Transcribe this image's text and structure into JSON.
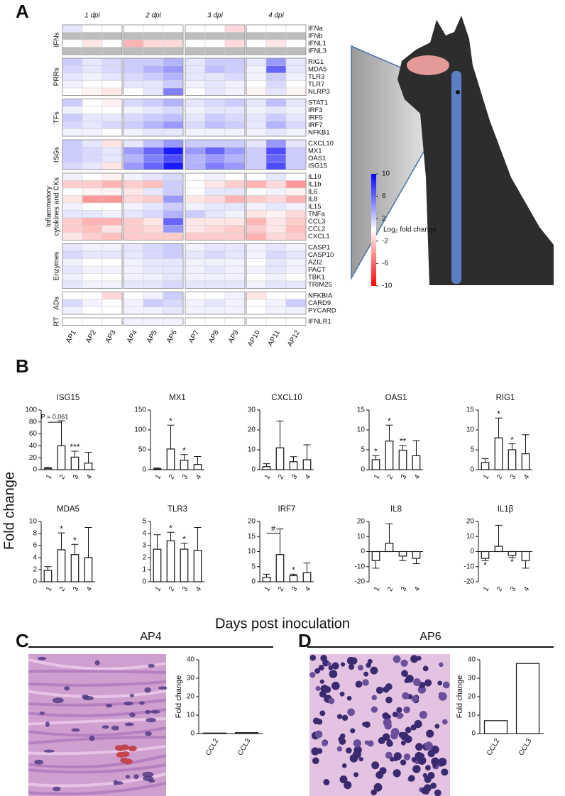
{
  "panels": [
    "A",
    "B",
    "C",
    "D"
  ],
  "panel_B": {
    "ylabel": "Fold change",
    "xlabel": "Days post inoculation"
  },
  "chart_data": [
    {
      "type": "heatmap",
      "column_groups": [
        "1 dpi",
        "2 dpi",
        "3 dpi",
        "4 dpi"
      ],
      "columns": [
        "AP1",
        "AP2",
        "AP3",
        "AP4",
        "AP5",
        "AP6",
        "AP7",
        "AP8",
        "AP9",
        "AP10",
        "AP11",
        "AP12"
      ],
      "row_groups": [
        {
          "label": [
            "IFNs"
          ],
          "rows": [
            "IFNa",
            "IFNb",
            "IFNL1",
            "IFNL3"
          ]
        },
        {
          "label": [
            "PRRs"
          ],
          "rows": [
            "RIG1",
            "MDA5",
            "TLR3",
            "TLR7",
            "NLRP3"
          ]
        },
        {
          "label": [
            "TFs"
          ],
          "rows": [
            "STAT1",
            "IRF3",
            "IRF5",
            "IRF7",
            "NFKB1"
          ]
        },
        {
          "label": [
            "ISGs"
          ],
          "rows": [
            "CXCL10",
            "MX1",
            "OAS1",
            "ISG15"
          ]
        },
        {
          "label": [
            "Inflammatory",
            "cytokines and CKs"
          ],
          "rows": [
            "IL10",
            "IL1b",
            "IL6",
            "IL8",
            "IL15",
            "TNFa",
            "CCL3",
            "CCL2",
            "CXCL1"
          ]
        },
        {
          "label": [
            "Enzymes"
          ],
          "rows": [
            "CASP1",
            "CASP10",
            "AZI2",
            "PACT",
            "TBK1",
            "TRIM25"
          ]
        },
        {
          "label": [
            "ADs"
          ],
          "rows": [
            "NFKBIA",
            "CARD9",
            "PYCARD"
          ]
        },
        {
          "label": [
            "RT"
          ],
          "rows": [
            "IFNLR1"
          ]
        }
      ],
      "values": [
        [
          1,
          0,
          0,
          0,
          0,
          0,
          0,
          0,
          -1.5,
          0,
          0,
          0
        ],
        [
          null,
          null,
          null,
          null,
          null,
          null,
          null,
          null,
          null,
          null,
          null,
          null
        ],
        [
          0,
          -1,
          0,
          -3,
          -1.5,
          -1.5,
          0,
          0,
          -1.5,
          0,
          -1,
          0
        ],
        [
          null,
          null,
          null,
          null,
          null,
          null,
          null,
          null,
          null,
          null,
          null,
          null
        ],
        [
          2,
          1,
          1.5,
          2,
          2,
          3,
          1,
          2,
          2,
          1,
          4,
          1
        ],
        [
          1.5,
          1,
          1.5,
          2,
          3,
          4,
          1,
          2.5,
          2,
          0.5,
          6,
          1
        ],
        [
          1,
          0.5,
          1,
          1.5,
          2,
          3,
          1,
          1,
          1.5,
          0.5,
          2,
          0.5
        ],
        [
          0.5,
          0,
          0,
          1,
          1,
          2,
          0.5,
          1,
          0.5,
          0,
          1.5,
          0
        ],
        [
          0,
          -0.5,
          -1,
          0,
          1,
          5,
          0,
          1,
          0.5,
          -0.5,
          1,
          -0.5
        ],
        [
          2,
          0,
          -0.5,
          1.5,
          2,
          3,
          1,
          1.5,
          2,
          1,
          2.5,
          1
        ],
        [
          0.5,
          0,
          0,
          0.5,
          1,
          1.5,
          0.5,
          1,
          1,
          0.5,
          1,
          0.5
        ],
        [
          2,
          1,
          1,
          1.5,
          2,
          2.5,
          1,
          2,
          1.5,
          1,
          2,
          1
        ],
        [
          1.5,
          1,
          1.5,
          2,
          3,
          4,
          1.5,
          2.5,
          2,
          1,
          3,
          1.5
        ],
        [
          0.5,
          0.5,
          0,
          0.5,
          1,
          1,
          0.5,
          0.5,
          0.5,
          0.5,
          1,
          0.5
        ],
        [
          2,
          1,
          -1,
          1,
          2.5,
          4,
          2,
          2,
          2,
          1,
          4,
          1
        ],
        [
          2,
          1.5,
          1,
          4,
          6,
          9,
          4,
          6,
          4,
          2,
          7,
          2
        ],
        [
          2,
          1.5,
          1,
          3,
          5,
          7,
          3,
          4,
          3,
          2,
          6,
          2
        ],
        [
          1.5,
          1,
          -1,
          4,
          6,
          9,
          3,
          5,
          4,
          2,
          7,
          2
        ],
        [
          0.5,
          0,
          -0.5,
          0.5,
          1,
          1.5,
          0,
          0.5,
          0,
          0,
          1,
          0
        ],
        [
          -2,
          -2,
          -3,
          -2,
          -2.5,
          2,
          0,
          -1,
          -2,
          -3,
          -1.5,
          -4
        ],
        [
          0,
          -0.5,
          -0.5,
          -1,
          1,
          2,
          0,
          1,
          1,
          0,
          0.5,
          -0.5
        ],
        [
          -1,
          -4,
          -4,
          -1.5,
          -2,
          4,
          -1,
          -1.5,
          -3,
          -2,
          -1.5,
          -3
        ],
        [
          0.5,
          0,
          0,
          0.5,
          1,
          2,
          0.5,
          1,
          1,
          0.5,
          1,
          0.5
        ],
        [
          1,
          1,
          0.5,
          1,
          1.5,
          3,
          2,
          1,
          0.5,
          -1,
          -0.5,
          -1.5
        ],
        [
          -2,
          -3,
          -3,
          -2,
          -1,
          6,
          -1,
          -1,
          -1,
          -3,
          -1,
          -2
        ],
        [
          -2,
          -2.5,
          -1,
          -2,
          -1.5,
          4,
          -1,
          -1.5,
          -2,
          -2,
          -1,
          -2.5
        ],
        [
          -1,
          -2,
          -2.5,
          -2,
          -2,
          -2,
          -2,
          -2,
          -2,
          -3,
          -1.5,
          -2
        ],
        [
          1,
          0.5,
          0.5,
          1,
          1.5,
          2,
          0.5,
          1,
          1,
          0.5,
          1,
          0.5
        ],
        [
          1.5,
          1,
          1,
          1,
          1.5,
          2,
          1,
          1.5,
          1,
          0.5,
          1.5,
          1
        ],
        [
          0.5,
          0,
          0,
          0.5,
          1,
          1,
          0.5,
          0.5,
          0.5,
          0,
          1,
          0.5
        ],
        [
          1,
          0.5,
          0.5,
          0.5,
          1,
          1,
          0.5,
          1,
          0.5,
          0.5,
          1,
          0.5
        ],
        [
          0.5,
          0,
          0,
          0.5,
          0.5,
          1,
          0.5,
          0.5,
          0.5,
          0,
          0.5,
          0
        ],
        [
          1,
          0.5,
          0.5,
          1,
          1,
          1.5,
          1,
          1,
          1,
          0.5,
          1,
          1
        ],
        [
          0,
          0,
          -1.5,
          0,
          0.5,
          2,
          0,
          0,
          0.5,
          -1,
          0,
          0
        ],
        [
          1.5,
          0.5,
          0,
          0.5,
          2,
          1.5,
          0.5,
          1,
          0.5,
          0,
          0.5,
          2
        ],
        [
          0.5,
          0,
          0,
          0.5,
          0.5,
          1,
          0.5,
          0.5,
          0.5,
          0,
          0.5,
          0.5
        ],
        [
          0,
          0,
          0,
          0.5,
          0.5,
          0.5,
          0,
          0,
          0,
          0,
          0,
          0
        ]
      ],
      "colors": {
        "low": "#ff0000",
        "mid": "#ffffff",
        "high": "#0000ff",
        "missing": "#bdbdbd"
      },
      "colorbar": {
        "label": "Log₂ fold change",
        "clim": [
          -10,
          10
        ],
        "ticks": [
          10,
          6,
          2,
          -2,
          -6,
          -10
        ]
      }
    },
    {
      "type": "bar",
      "title": "ISG15",
      "categories": [
        "1",
        "2",
        "3",
        "4"
      ],
      "values": [
        2,
        40,
        21,
        11
      ],
      "errors": [
        2,
        42,
        10,
        18
      ],
      "annotations": [
        null,
        "P = 0.061",
        "***",
        null
      ],
      "ylim": [
        0,
        100
      ],
      "yticks": [
        0,
        20,
        40,
        60,
        80,
        100
      ],
      "color": "#ffffff"
    },
    {
      "type": "bar",
      "title": "MX1",
      "categories": [
        "1",
        "2",
        "3",
        "4"
      ],
      "values": [
        2,
        52,
        24,
        13
      ],
      "errors": [
        2,
        60,
        14,
        20
      ],
      "annotations": [
        null,
        "*",
        "*",
        null
      ],
      "ylim": [
        0,
        150
      ],
      "yticks": [
        0,
        50,
        100,
        150
      ],
      "color": "#ffffff"
    },
    {
      "type": "bar",
      "title": "CXCL10",
      "categories": [
        "1",
        "2",
        "3",
        "4"
      ],
      "values": [
        1.5,
        11,
        4,
        5
      ],
      "errors": [
        1.5,
        13.5,
        2.5,
        7.5
      ],
      "annotations": [
        null,
        null,
        null,
        null
      ],
      "ylim": [
        0,
        30
      ],
      "yticks": [
        0,
        10,
        20,
        30
      ],
      "color": "#ffffff"
    },
    {
      "type": "bar",
      "title": "OAS1",
      "categories": [
        "1",
        "2",
        "3",
        "4"
      ],
      "values": [
        2.5,
        7.2,
        4.9,
        3.5
      ],
      "errors": [
        1,
        4,
        1.2,
        3.8
      ],
      "annotations": [
        "*",
        "*",
        "**",
        null
      ],
      "ylim": [
        0,
        15
      ],
      "yticks": [
        0,
        5,
        10,
        15
      ],
      "color": "#ffffff"
    },
    {
      "type": "bar",
      "title": "RIG1",
      "categories": [
        "1",
        "2",
        "3",
        "4"
      ],
      "values": [
        1.8,
        8,
        5,
        4
      ],
      "errors": [
        1,
        5,
        1.5,
        4.8
      ],
      "annotations": [
        null,
        "*",
        "*",
        null
      ],
      "ylim": [
        0,
        15
      ],
      "yticks": [
        0,
        5,
        10,
        15
      ],
      "color": "#ffffff"
    },
    {
      "type": "bar",
      "title": "MDA5",
      "categories": [
        "1",
        "2",
        "3",
        "4"
      ],
      "values": [
        1.9,
        5.3,
        4.5,
        4
      ],
      "errors": [
        0.6,
        2.8,
        1.7,
        5
      ],
      "annotations": [
        null,
        "*",
        "*",
        null
      ],
      "ylim": [
        0,
        10
      ],
      "yticks": [
        0,
        2,
        4,
        6,
        8,
        10
      ],
      "color": "#ffffff"
    },
    {
      "type": "bar",
      "title": "TLR3",
      "categories": [
        "1",
        "2",
        "3",
        "4"
      ],
      "values": [
        2.7,
        3.4,
        2.7,
        2.6
      ],
      "errors": [
        1.2,
        0.7,
        0.5,
        1.9
      ],
      "annotations": [
        null,
        "*",
        "*",
        null
      ],
      "ylim": [
        0,
        5
      ],
      "yticks": [
        0,
        1,
        2,
        3,
        4,
        5
      ],
      "color": "#ffffff"
    },
    {
      "type": "bar",
      "title": "IRF7",
      "categories": [
        "1",
        "2",
        "3",
        "4"
      ],
      "values": [
        1.5,
        9,
        2,
        3
      ],
      "errors": [
        1,
        8.5,
        0.5,
        3.2
      ],
      "annotations": [
        null,
        "#",
        "*",
        null
      ],
      "ylim": [
        0,
        20
      ],
      "yticks": [
        0,
        5,
        10,
        15,
        20
      ],
      "color": "#ffffff"
    },
    {
      "type": "bar",
      "title": "IL8",
      "categories": [
        "1",
        "2",
        "3",
        "4"
      ],
      "values": [
        -6,
        5.5,
        -3,
        -4.5
      ],
      "errors": [
        5,
        13,
        3,
        3.5
      ],
      "annotations": [
        null,
        null,
        null,
        null
      ],
      "ylim": [
        -20,
        20
      ],
      "yticks": [
        -20,
        -10,
        0,
        10,
        20
      ],
      "color": "#ffffff"
    },
    {
      "type": "bar",
      "title": "IL1β",
      "categories": [
        "1",
        "2",
        "3",
        "4"
      ],
      "values": [
        -4.5,
        3.5,
        -2.5,
        -6
      ],
      "errors": [
        1.5,
        14,
        1.5,
        5
      ],
      "annotations": [
        "*",
        null,
        "*",
        null
      ],
      "ylim": [
        -20,
        20
      ],
      "yticks": [
        -20,
        -10,
        0,
        10,
        20
      ],
      "color": "#ffffff"
    },
    {
      "type": "bar",
      "title": "AP4",
      "ylabel": "Fold change",
      "categories": [
        "CCL2",
        "CCL3"
      ],
      "values": [
        0.3,
        0.5
      ],
      "ylim": [
        0,
        40
      ],
      "yticks": [
        0,
        10,
        20,
        30,
        40
      ],
      "color": "#ffffff"
    },
    {
      "type": "bar",
      "title": "AP6",
      "ylabel": "Fold change",
      "categories": [
        "CCL2",
        "CCL3"
      ],
      "values": [
        7,
        38
      ],
      "ylim": [
        0,
        40
      ],
      "yticks": [
        0,
        10,
        20,
        30,
        40
      ],
      "color": "#ffffff"
    }
  ]
}
